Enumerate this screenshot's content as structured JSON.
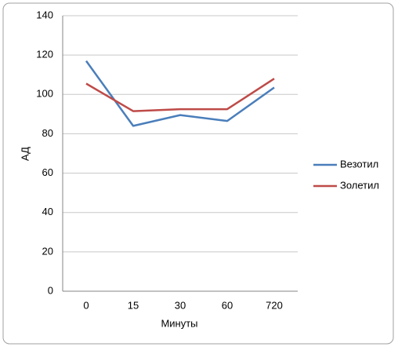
{
  "chart_data": {
    "type": "line",
    "x_label": "Минуты",
    "y_label": "АД",
    "categories": [
      "0",
      "15",
      "30",
      "60",
      "720"
    ],
    "series": [
      {
        "name": "Везотил",
        "color": "#4a7ebb",
        "values": [
          117,
          84,
          89.5,
          86.5,
          103.5
        ]
      },
      {
        "name": "Золетил",
        "color": "#be4b48",
        "values": [
          105.5,
          91.5,
          92.5,
          92.5,
          108
        ]
      }
    ],
    "ylim": [
      0,
      140
    ],
    "yticks": [
      0,
      20,
      40,
      60,
      80,
      100,
      120,
      140
    ],
    "grid": true,
    "legend": "right"
  }
}
